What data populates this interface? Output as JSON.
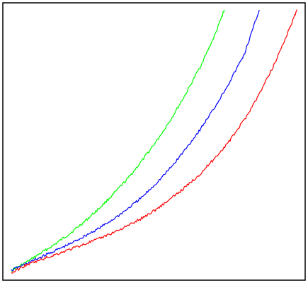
{
  "chart_data": {
    "type": "line",
    "title": "",
    "xlabel": "",
    "ylabel": "",
    "xlim": [
      0,
      1
    ],
    "ylim": [
      0,
      1
    ],
    "grid": false,
    "legend": "none",
    "axes_visible": false,
    "frame": true,
    "series": [
      {
        "color": "#00ff00",
        "points": [
          [
            0.0,
            0.01
          ],
          [
            0.05,
            0.04
          ],
          [
            0.1,
            0.075
          ],
          [
            0.15,
            0.11
          ],
          [
            0.2,
            0.15
          ],
          [
            0.25,
            0.195
          ],
          [
            0.3,
            0.245
          ],
          [
            0.35,
            0.3
          ],
          [
            0.4,
            0.36
          ],
          [
            0.45,
            0.43
          ],
          [
            0.5,
            0.505
          ],
          [
            0.55,
            0.59
          ],
          [
            0.6,
            0.685
          ],
          [
            0.65,
            0.79
          ],
          [
            0.7,
            0.91
          ],
          [
            0.73,
            1.0
          ]
        ]
      },
      {
        "color": "#0000ff",
        "points": [
          [
            0.0,
            0.01
          ],
          [
            0.05,
            0.035
          ],
          [
            0.1,
            0.06
          ],
          [
            0.15,
            0.085
          ],
          [
            0.2,
            0.11
          ],
          [
            0.25,
            0.14
          ],
          [
            0.3,
            0.17
          ],
          [
            0.35,
            0.205
          ],
          [
            0.4,
            0.245
          ],
          [
            0.45,
            0.29
          ],
          [
            0.5,
            0.345
          ],
          [
            0.55,
            0.405
          ],
          [
            0.6,
            0.475
          ],
          [
            0.65,
            0.55
          ],
          [
            0.7,
            0.635
          ],
          [
            0.75,
            0.73
          ],
          [
            0.8,
            0.835
          ],
          [
            0.85,
            1.0
          ]
        ]
      },
      {
        "color": "#ff0000",
        "points": [
          [
            0.0,
            0.0
          ],
          [
            0.05,
            0.03
          ],
          [
            0.1,
            0.05
          ],
          [
            0.15,
            0.07
          ],
          [
            0.2,
            0.09
          ],
          [
            0.25,
            0.11
          ],
          [
            0.3,
            0.13
          ],
          [
            0.35,
            0.155
          ],
          [
            0.4,
            0.18
          ],
          [
            0.45,
            0.21
          ],
          [
            0.5,
            0.245
          ],
          [
            0.55,
            0.285
          ],
          [
            0.6,
            0.33
          ],
          [
            0.65,
            0.38
          ],
          [
            0.7,
            0.44
          ],
          [
            0.75,
            0.505
          ],
          [
            0.8,
            0.585
          ],
          [
            0.85,
            0.68
          ],
          [
            0.9,
            0.79
          ],
          [
            0.95,
            0.92
          ],
          [
            0.98,
            1.0
          ]
        ]
      }
    ]
  }
}
